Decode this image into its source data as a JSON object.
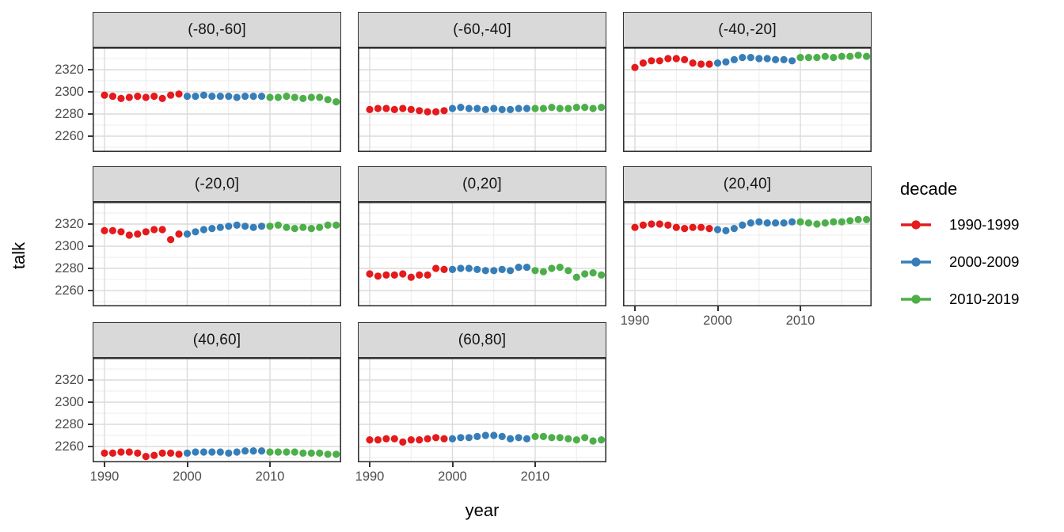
{
  "chart_data": {
    "type": "scatter",
    "title": "",
    "xlabel": "year",
    "ylabel": "talk",
    "x_ticks": [
      1990,
      2000,
      2010
    ],
    "y_ticks": [
      2260,
      2280,
      2300,
      2320
    ],
    "x_minor_gridlines": [
      1995,
      2005,
      2015
    ],
    "y_minor_gridlines": [
      2250,
      2270,
      2290,
      2310,
      2330
    ],
    "x_range": [
      1988.5,
      2018.6
    ],
    "y_range": [
      2246,
      2340
    ],
    "grid": true,
    "panel_background": "#FFFFFF",
    "strip_background": "#D9D9D9",
    "legend": {
      "title": "decade",
      "position": "right",
      "entries": [
        {
          "label": "1990-1999",
          "color": "#E41A1C",
          "start_year": 1990
        },
        {
          "label": "2000-2009",
          "color": "#377EB8",
          "start_year": 2000
        },
        {
          "label": "2010-2019",
          "color": "#4DAF4A",
          "start_year": 2010
        }
      ]
    },
    "facets": [
      {
        "label": "(-80,-60]",
        "series": {
          "1990-1999": [
            2297,
            2296,
            2294,
            2295,
            2296,
            2295,
            2296,
            2294,
            2297,
            2298
          ],
          "2000-2009": [
            2296,
            2296,
            2297,
            2296,
            2296,
            2296,
            2295,
            2296,
            2296,
            2296
          ],
          "2010-2019": [
            2295,
            2295,
            2296,
            2295,
            2294,
            2295,
            2295,
            2293,
            2291
          ]
        }
      },
      {
        "label": "(-60,-40]",
        "series": {
          "1990-1999": [
            2284,
            2285,
            2285,
            2284,
            2285,
            2284,
            2283,
            2282,
            2282,
            2283
          ],
          "2000-2009": [
            2285,
            2286,
            2285,
            2285,
            2284,
            2285,
            2284,
            2284,
            2285,
            2285
          ],
          "2010-2019": [
            2285,
            2285,
            2286,
            2285,
            2285,
            2286,
            2286,
            2285,
            2286
          ]
        }
      },
      {
        "label": "(-40,-20]",
        "series": {
          "1990-1999": [
            2322,
            2326,
            2328,
            2328,
            2330,
            2330,
            2329,
            2326,
            2325,
            2325
          ],
          "2000-2009": [
            2326,
            2327,
            2329,
            2331,
            2331,
            2330,
            2330,
            2329,
            2329,
            2328
          ],
          "2010-2019": [
            2331,
            2331,
            2331,
            2332,
            2331,
            2332,
            2332,
            2333,
            2332
          ]
        }
      },
      {
        "label": "(-20,0]",
        "series": {
          "1990-1999": [
            2314,
            2314,
            2313,
            2310,
            2311,
            2313,
            2315,
            2315,
            2306,
            2311
          ],
          "2000-2009": [
            2311,
            2313,
            2315,
            2316,
            2317,
            2318,
            2319,
            2318,
            2317,
            2318
          ],
          "2010-2019": [
            2318,
            2319,
            2317,
            2316,
            2317,
            2316,
            2317,
            2319,
            2319
          ]
        }
      },
      {
        "label": "(0,20]",
        "series": {
          "1990-1999": [
            2275,
            2273,
            2274,
            2274,
            2275,
            2272,
            2274,
            2274,
            2280,
            2279
          ],
          "2000-2009": [
            2279,
            2280,
            2280,
            2279,
            2278,
            2278,
            2279,
            2278,
            2281,
            2281
          ],
          "2010-2019": [
            2278,
            2277,
            2280,
            2281,
            2278,
            2272,
            2275,
            2276,
            2274
          ]
        }
      },
      {
        "label": "(20,40]",
        "series": {
          "1990-1999": [
            2317,
            2319,
            2320,
            2320,
            2319,
            2317,
            2316,
            2317,
            2317,
            2316
          ],
          "2000-2009": [
            2315,
            2314,
            2316,
            2319,
            2321,
            2322,
            2321,
            2321,
            2321,
            2322
          ],
          "2010-2019": [
            2322,
            2321,
            2320,
            2321,
            2322,
            2322,
            2323,
            2324,
            2324
          ]
        }
      },
      {
        "label": "(40,60]",
        "series": {
          "1990-1999": [
            2254,
            2254,
            2255,
            2255,
            2254,
            2251,
            2252,
            2254,
            2254,
            2253
          ],
          "2000-2009": [
            2254,
            2255,
            2255,
            2255,
            2255,
            2254,
            2255,
            2256,
            2256,
            2256
          ],
          "2010-2019": [
            2255,
            2255,
            2255,
            2255,
            2254,
            2254,
            2254,
            2253,
            2253
          ]
        }
      },
      {
        "label": "(60,80]",
        "series": {
          "1990-1999": [
            2266,
            2266,
            2267,
            2267,
            2264,
            2266,
            2266,
            2267,
            2268,
            2267
          ],
          "2000-2009": [
            2267,
            2268,
            2268,
            2269,
            2270,
            2270,
            2269,
            2267,
            2268,
            2267
          ],
          "2010-2019": [
            2269,
            2269,
            2268,
            2268,
            2267,
            2266,
            2268,
            2265,
            2266,
            2267
          ]
        }
      }
    ]
  }
}
